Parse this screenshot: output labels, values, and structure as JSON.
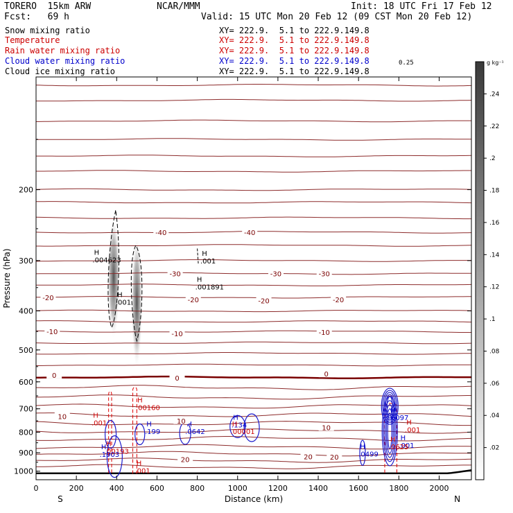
{
  "header": {
    "model": "TORERO  15km ARW",
    "center": "NCAR/MMM",
    "init": "Init: 18 UTC Fri 17 Feb 12",
    "fcst": "Fcst:   69 h",
    "valid": "Valid: 15 UTC Mon 20 Feb 12 (09 CST Mon 20 Feb 12)"
  },
  "fields": [
    {
      "name": "Snow mixing ratio",
      "xy": "XY= 222.9.  5.1 to 222.9.149.8",
      "color": "#000000"
    },
    {
      "name": "Temperature",
      "xy": "XY= 222.9.  5.1 to 222.9.149.8",
      "color": "#cc0000"
    },
    {
      "name": "Rain water mixing ratio",
      "xy": "XY= 222.9.  5.1 to 222.9.149.8",
      "color": "#cc0000"
    },
    {
      "name": "Cloud water mixing ratio",
      "xy": "XY= 222.9.  5.1 to 222.9.149.8",
      "color": "#0000cc"
    },
    {
      "name": "Cloud ice mixing ratio",
      "xy": "XY= 222.9.  5.1 to 222.9.149.8",
      "color": "#000000"
    }
  ],
  "extra_label": "0.25",
  "colorbar": {
    "unit": "g kg⁻¹",
    "ticks": [
      ".02",
      ".04",
      ".06",
      ".08",
      ".1",
      ".12",
      ".14",
      ".16",
      ".18",
      ".2",
      ".22",
      ".24"
    ]
  },
  "chart_data": {
    "type": "contour-cross-section",
    "xlabel": "Distance (km)",
    "ylabel": "Pressure (hPa)",
    "xlim": [
      0,
      2160
    ],
    "ylim": [
      1050,
      105
    ],
    "x_ticks": [
      "0",
      "200",
      "400",
      "600",
      "800",
      "1000",
      "1200",
      "1400",
      "1600",
      "1800",
      "2000"
    ],
    "y_ticks": [
      "200",
      "300",
      "400",
      "500",
      "600",
      "700",
      "800",
      "900",
      "1000"
    ],
    "left_end": "S",
    "right_end": "N",
    "temperature_contours": [
      {
        "label": "-40",
        "p": 255
      },
      {
        "label": "-30",
        "p": 323
      },
      {
        "label": "-20",
        "p": 370
      },
      {
        "label": "-10",
        "p": 450
      },
      {
        "label": "0",
        "p": 585
      },
      {
        "label": "10",
        "p": 725
      },
      {
        "label": "20",
        "p": 905
      }
    ],
    "maxima_labels": [
      {
        "text": ".004623",
        "x": 280,
        "p": 303,
        "color": "#000000"
      },
      {
        "text": ".001",
        "x": 395,
        "p": 386,
        "color": "#000000"
      },
      {
        "text": ".001",
        "x": 815,
        "p": 305,
        "color": "#000000"
      },
      {
        "text": ".001891",
        "x": 790,
        "p": 354,
        "color": "#000000"
      },
      {
        "text": ".00160",
        "x": 495,
        "p": 705,
        "color": "#cc0000"
      },
      {
        "text": ".001",
        "x": 275,
        "p": 770,
        "color": "#cc0000"
      },
      {
        "text": ".199",
        "x": 540,
        "p": 809,
        "color": "#0000cc"
      },
      {
        "text": ".0642",
        "x": 740,
        "p": 809,
        "color": "#0000cc"
      },
      {
        "text": ".134",
        "x": 970,
        "p": 778,
        "color": "#0000cc"
      },
      {
        "text": ".00001",
        "x": 965,
        "p": 809,
        "color": "#cc0000"
      },
      {
        "text": ".00193",
        "x": 340,
        "p": 905,
        "color": "#cc0000"
      },
      {
        "text": ".1903",
        "x": 315,
        "p": 921,
        "color": "#0000cc"
      },
      {
        "text": ".6097",
        "x": 1750,
        "p": 747,
        "color": "#0000cc"
      },
      {
        "text": ".0499",
        "x": 1600,
        "p": 920,
        "color": "#0000cc"
      },
      {
        "text": ".001",
        "x": 1800,
        "p": 875,
        "color": "#0000cc"
      },
      {
        "text": ".001",
        "x": 1830,
        "p": 800,
        "color": "#cc0000"
      },
      {
        "text": ".0625",
        "x": 1750,
        "p": 882,
        "color": "#cc0000"
      },
      {
        "text": ".001",
        "x": 490,
        "p": 1012,
        "color": "#cc0000"
      }
    ],
    "temperature_labels": [
      {
        "text": "-40",
        "x": 620,
        "p": 255
      },
      {
        "text": "-40",
        "x": 1060,
        "p": 255
      },
      {
        "text": "-30",
        "x": 690,
        "p": 323
      },
      {
        "text": "-30",
        "x": 1190,
        "p": 323
      },
      {
        "text": "-30",
        "x": 1430,
        "p": 323
      },
      {
        "text": "-20",
        "x": 60,
        "p": 370
      },
      {
        "text": "-20",
        "x": 780,
        "p": 375
      },
      {
        "text": "-20",
        "x": 1130,
        "p": 377
      },
      {
        "text": "-20",
        "x": 1500,
        "p": 375
      },
      {
        "text": "-10",
        "x": 80,
        "p": 450
      },
      {
        "text": "-10",
        "x": 700,
        "p": 455
      },
      {
        "text": "-10",
        "x": 1430,
        "p": 451
      },
      {
        "text": "0",
        "x": 90,
        "p": 577
      },
      {
        "text": "0",
        "x": 700,
        "p": 586
      },
      {
        "text": "0",
        "x": 1440,
        "p": 573
      },
      {
        "text": "10",
        "x": 130,
        "p": 730
      },
      {
        "text": "10",
        "x": 720,
        "p": 749
      },
      {
        "text": "10",
        "x": 1440,
        "p": 778
      },
      {
        "text": "20",
        "x": 740,
        "p": 934
      },
      {
        "text": "20",
        "x": 1350,
        "p": 920
      },
      {
        "text": "20",
        "x": 1480,
        "p": 921
      }
    ],
    "marker": "H"
  }
}
